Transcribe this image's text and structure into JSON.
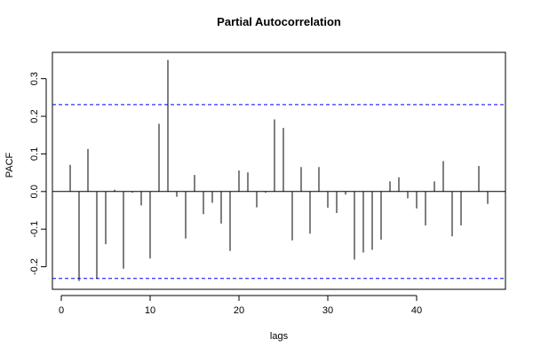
{
  "chart_data": {
    "type": "bar",
    "title": "Partial Autocorrelation",
    "xlabel": "lags",
    "ylabel": "PACF",
    "x": [
      1,
      2,
      3,
      4,
      5,
      6,
      7,
      8,
      9,
      10,
      11,
      12,
      13,
      14,
      15,
      16,
      17,
      18,
      19,
      20,
      21,
      22,
      23,
      24,
      25,
      26,
      27,
      28,
      29,
      30,
      31,
      32,
      33,
      34,
      35,
      36,
      37,
      38,
      39,
      40,
      41,
      42,
      43,
      44,
      45,
      46,
      47,
      48
    ],
    "values": [
      0.071,
      -0.238,
      0.113,
      -0.232,
      -0.14,
      0.005,
      -0.205,
      -0.003,
      -0.037,
      -0.178,
      0.18,
      0.35,
      -0.014,
      -0.125,
      0.044,
      -0.06,
      -0.03,
      -0.085,
      -0.158,
      0.056,
      0.051,
      -0.042,
      -0.003,
      0.192,
      0.169,
      -0.13,
      0.065,
      -0.112,
      0.065,
      -0.043,
      -0.057,
      -0.008,
      -0.181,
      -0.162,
      -0.155,
      -0.128,
      0.027,
      0.038,
      -0.018,
      -0.045,
      -0.09,
      0.027,
      0.081,
      -0.119,
      -0.09,
      0.0,
      0.068,
      -0.033
    ],
    "xlim": [
      -1,
      50
    ],
    "ylim": [
      -0.26,
      0.37
    ],
    "x_ticks": [
      0,
      10,
      20,
      30,
      40
    ],
    "y_ticks": [
      -0.2,
      -0.1,
      0.0,
      0.1,
      0.2,
      0.3
    ],
    "y_tick_labels": [
      "-0.2",
      "-0.1",
      "0.0",
      "0.1",
      "0.2",
      "0.3"
    ],
    "confidence_bounds": [
      0.231,
      -0.231
    ],
    "confidence_color": "#0000ff",
    "bar_color": "#000000",
    "zero_line": true,
    "grid": false
  }
}
